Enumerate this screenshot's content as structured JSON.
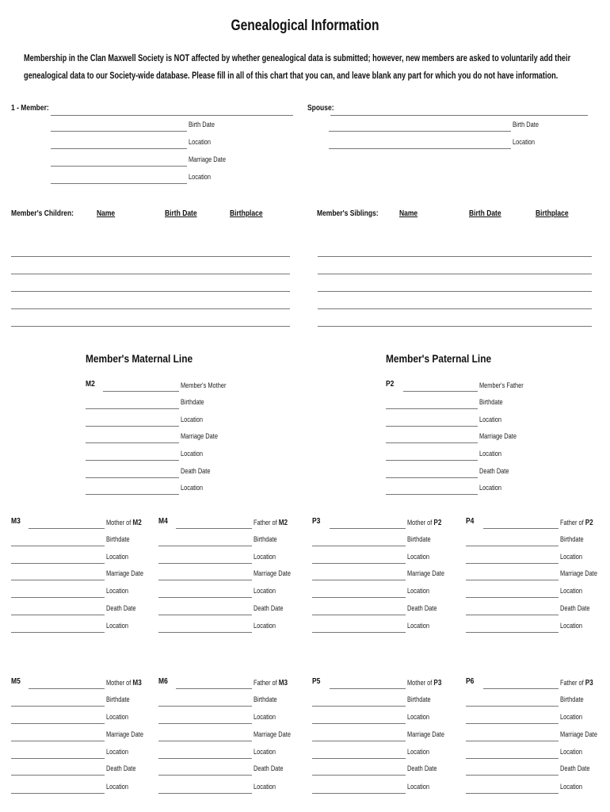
{
  "title": "Genealogical Information",
  "intro": [
    "Membership in the Clan Maxwell Society is NOT affected by whether genealogical data is submitted; however, new members are asked to voluntarily add their",
    "genealogical data to our Society-wide database.  Please fill in all of this chart that you can, and leave blank any part for which you do not have information."
  ],
  "member": {
    "label": "1 - Member:",
    "fields": [
      "Birth Date",
      "Location",
      "Marriage Date",
      "Location"
    ]
  },
  "spouse": {
    "label": "Spouse:",
    "fields": [
      "Birth Date",
      "Location"
    ]
  },
  "children": {
    "label": "Member's Children:",
    "columns": [
      "Name",
      "Birth Date",
      "Birthplace"
    ]
  },
  "siblings": {
    "label": "Member's Siblings:",
    "columns": [
      "Name",
      "Birth Date",
      "Birthplace"
    ]
  },
  "maternal_heading": "Member's Maternal Line",
  "paternal_heading": "Member's Paternal Line",
  "gen2": [
    {
      "id": "M2",
      "relation": "Member's Mother",
      "ref": "",
      "fields": [
        "Birthdate",
        "Location",
        "Marriage Date",
        "Location",
        "Death Date",
        "Location"
      ]
    },
    {
      "id": "P2",
      "relation": "Member's Father",
      "ref": "",
      "fields": [
        "Birthdate",
        "Location",
        "Marriage Date",
        "Location",
        "Death Date",
        "Location"
      ]
    }
  ],
  "gen3": [
    {
      "id": "M3",
      "relation": "Mother of ",
      "ref": "M2",
      "fields": [
        "Birthdate",
        "Location",
        "Marriage Date",
        "Location",
        "Death Date",
        "Location"
      ]
    },
    {
      "id": "M4",
      "relation": "Father of ",
      "ref": "M2",
      "fields": [
        "Birthdate",
        "Location",
        "Marriage Date",
        "Location",
        "Death Date",
        "Location"
      ]
    },
    {
      "id": "P3",
      "relation": "Mother of ",
      "ref": "P2",
      "fields": [
        "Birthdate",
        "Location",
        "Marriage Date",
        "Location",
        "Death Date",
        "Location"
      ]
    },
    {
      "id": "P4",
      "relation": "Father of ",
      "ref": "P2",
      "fields": [
        "Birthdate",
        "Location",
        "Marriage Date",
        "Location",
        "Death Date",
        "Location"
      ]
    }
  ],
  "gen4": [
    {
      "id": "M5",
      "relation": "Mother of ",
      "ref": "M3",
      "fields": [
        "Birthdate",
        "Location",
        "Marriage Date",
        "Location",
        "Death Date",
        "Location"
      ]
    },
    {
      "id": "M6",
      "relation": "Father of ",
      "ref": "M3",
      "fields": [
        "Birthdate",
        "Location",
        "Marriage Date",
        "Location",
        "Death Date",
        "Location"
      ]
    },
    {
      "id": "P5",
      "relation": "Mother of ",
      "ref": "P3",
      "fields": [
        "Birthdate",
        "Location",
        "Marriage Date",
        "Location",
        "Death Date",
        "Location"
      ]
    },
    {
      "id": "P6",
      "relation": "Father of ",
      "ref": "P3",
      "fields": [
        "Birthdate",
        "Location",
        "Marriage Date",
        "Location",
        "Death Date",
        "Location"
      ]
    }
  ]
}
